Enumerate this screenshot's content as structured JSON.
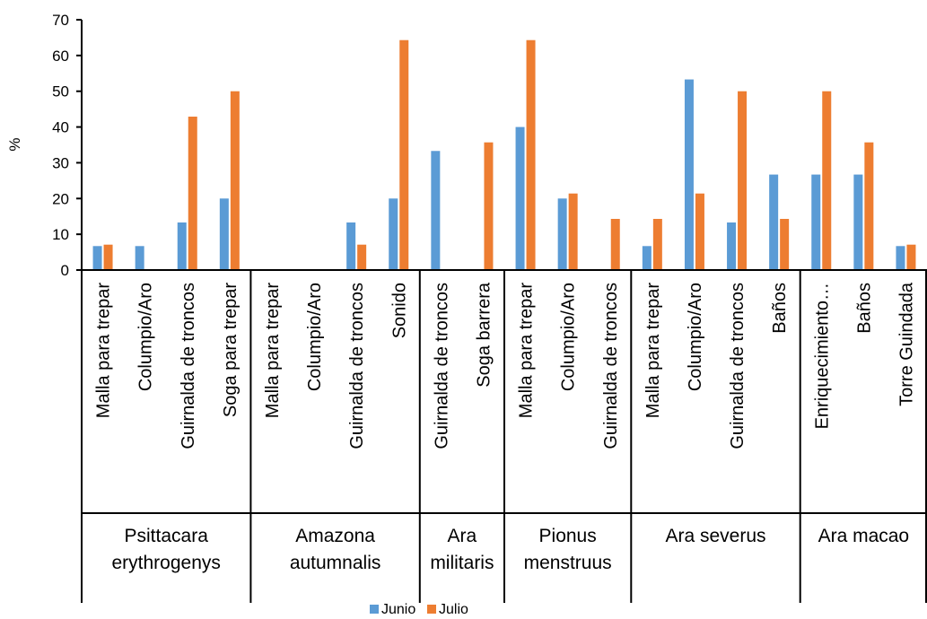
{
  "chart_data": {
    "type": "bar",
    "ylabel": "%",
    "ylim": [
      0,
      70
    ],
    "yticks": [
      0,
      10,
      20,
      30,
      40,
      50,
      60,
      70
    ],
    "grid": false,
    "legend_position": "bottom",
    "colors": {
      "Junio": "#5B9BD5",
      "Julio": "#ED7D31"
    },
    "groups": [
      {
        "name_lines": [
          "Psittacara",
          "erythrogenys"
        ],
        "categories": [
          "Malla para trepar",
          "Columpio/Aro",
          "Guirnalda de troncos",
          "Soga para trepar"
        ],
        "junio": [
          6.7,
          6.7,
          13.3,
          20
        ],
        "julio": [
          7.1,
          null,
          42.9,
          50
        ]
      },
      {
        "name_lines": [
          "Amazona",
          "autumnalis"
        ],
        "categories": [
          "Malla para trepar",
          "Columpio/Aro",
          "Guirnalda de troncos",
          "Sonido"
        ],
        "junio": [
          null,
          null,
          13.3,
          20
        ],
        "julio": [
          null,
          null,
          7.1,
          64.3
        ]
      },
      {
        "name_lines": [
          "Ara",
          "militaris"
        ],
        "categories": [
          "Guirnalda de troncos",
          "Soga barrera"
        ],
        "junio": [
          33.3,
          null
        ],
        "julio": [
          null,
          35.7
        ]
      },
      {
        "name_lines": [
          "Pionus",
          "menstruus"
        ],
        "categories": [
          "Malla para trepar",
          "Columpio/Aro",
          "Guirnalda de troncos"
        ],
        "junio": [
          40,
          20,
          null
        ],
        "julio": [
          64.3,
          21.4,
          14.3
        ]
      },
      {
        "name_lines": [
          "Ara severus"
        ],
        "categories": [
          "Malla para trepar",
          "Columpio/Aro",
          "Guirnalda de troncos",
          "Baños"
        ],
        "junio": [
          6.7,
          53.3,
          13.3,
          26.7
        ],
        "julio": [
          14.3,
          21.4,
          50,
          14.3
        ]
      },
      {
        "name_lines": [
          "Ara macao"
        ],
        "categories": [
          "Enriquecimiento…",
          "Baños",
          "Torre Guindada"
        ],
        "junio": [
          26.7,
          26.7,
          6.7
        ],
        "julio": [
          50,
          35.7,
          7.1
        ]
      }
    ],
    "series": [
      {
        "name": "Junio",
        "key": "junio"
      },
      {
        "name": "Julio",
        "key": "julio"
      }
    ]
  }
}
